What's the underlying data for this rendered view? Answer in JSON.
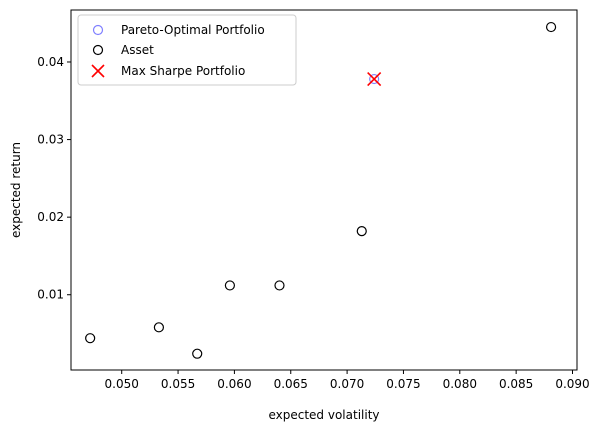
{
  "chart_data": {
    "type": "scatter",
    "title": "",
    "xlabel": "expected volatility",
    "ylabel": "expected return",
    "xlim": [
      0.0455,
      0.0904
    ],
    "ylim": [
      0.0003,
      0.0467
    ],
    "xticks": [
      0.05,
      0.055,
      0.06,
      0.065,
      0.07,
      0.075,
      0.08,
      0.085,
      0.09
    ],
    "xtick_labels": [
      "0.050",
      "0.055",
      "0.060",
      "0.065",
      "0.070",
      "0.075",
      "0.080",
      "0.085",
      "0.090"
    ],
    "yticks": [
      0.01,
      0.02,
      0.03,
      0.04
    ],
    "ytick_labels": [
      "0.01",
      "0.02",
      "0.03",
      "0.04"
    ],
    "grid": false,
    "legend_position": "top-left",
    "series": [
      {
        "name": "Pareto-Optimal Portfolio",
        "marker": "hollow-circle",
        "color": "#8080ff",
        "x": [
          0.0724
        ],
        "y": [
          0.0378
        ]
      },
      {
        "name": "Asset",
        "marker": "hollow-circle",
        "color": "#000000",
        "x": [
          0.0472,
          0.0533,
          0.0567,
          0.0596,
          0.064,
          0.0713,
          0.0881
        ],
        "y": [
          0.0044,
          0.0058,
          0.0024,
          0.0112,
          0.0112,
          0.0182,
          0.0445
        ]
      },
      {
        "name": "Max Sharpe Portfolio",
        "marker": "x",
        "color": "#ff0000",
        "x": [
          0.0724
        ],
        "y": [
          0.0378
        ]
      }
    ]
  }
}
